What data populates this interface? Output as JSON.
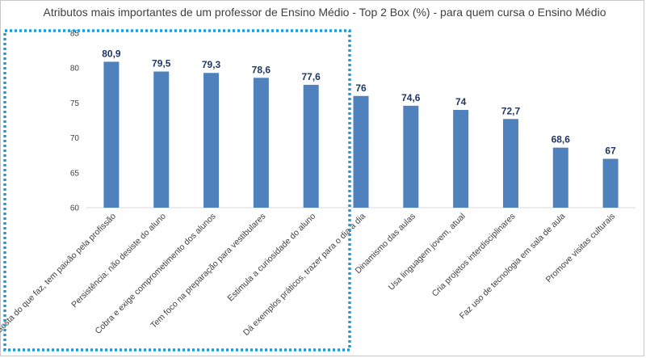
{
  "chart_data": {
    "type": "bar",
    "title": "Atributos mais importantes de um professor de Ensino Médio - Top 2 Box (%) - para quem cursa o Ensino Médio",
    "categories": [
      "Gosta do que faz, tem paixão pela profissão",
      "Persistência: não desiste do aluno",
      "Cobra e exige comprometimento dos alunos",
      "Tem foco na preparação para vestibulares",
      "Estimula a curiosidade do aluno",
      "Dá exemplos práticos, trazer para o dia a dia",
      "Dinamismo das aulas",
      "Usa linguagem jovem, atual",
      "Cria projetos interdisciplinares",
      "Faz uso de tecnologia em sala de aula",
      "Promove visitas culturais"
    ],
    "values": [
      80.9,
      79.5,
      79.3,
      78.6,
      77.6,
      76,
      74.6,
      74,
      72.7,
      68.6,
      67
    ],
    "value_labels": [
      "80,9",
      "79,5",
      "79,3",
      "78,6",
      "77,6",
      "76",
      "74,6",
      "74",
      "72,7",
      "68,6",
      "67"
    ],
    "yticks": [
      "60",
      "65",
      "70",
      "75",
      "80",
      "85"
    ],
    "ylim": [
      60,
      85
    ],
    "xlabel": "",
    "ylabel": "",
    "grid": false,
    "legend": "none",
    "bar_color": "#4f81bd",
    "label_color": "#1f3864",
    "highlight": {
      "style": "dotted",
      "color": "#1e9bd7",
      "covers_categories": 5
    }
  }
}
